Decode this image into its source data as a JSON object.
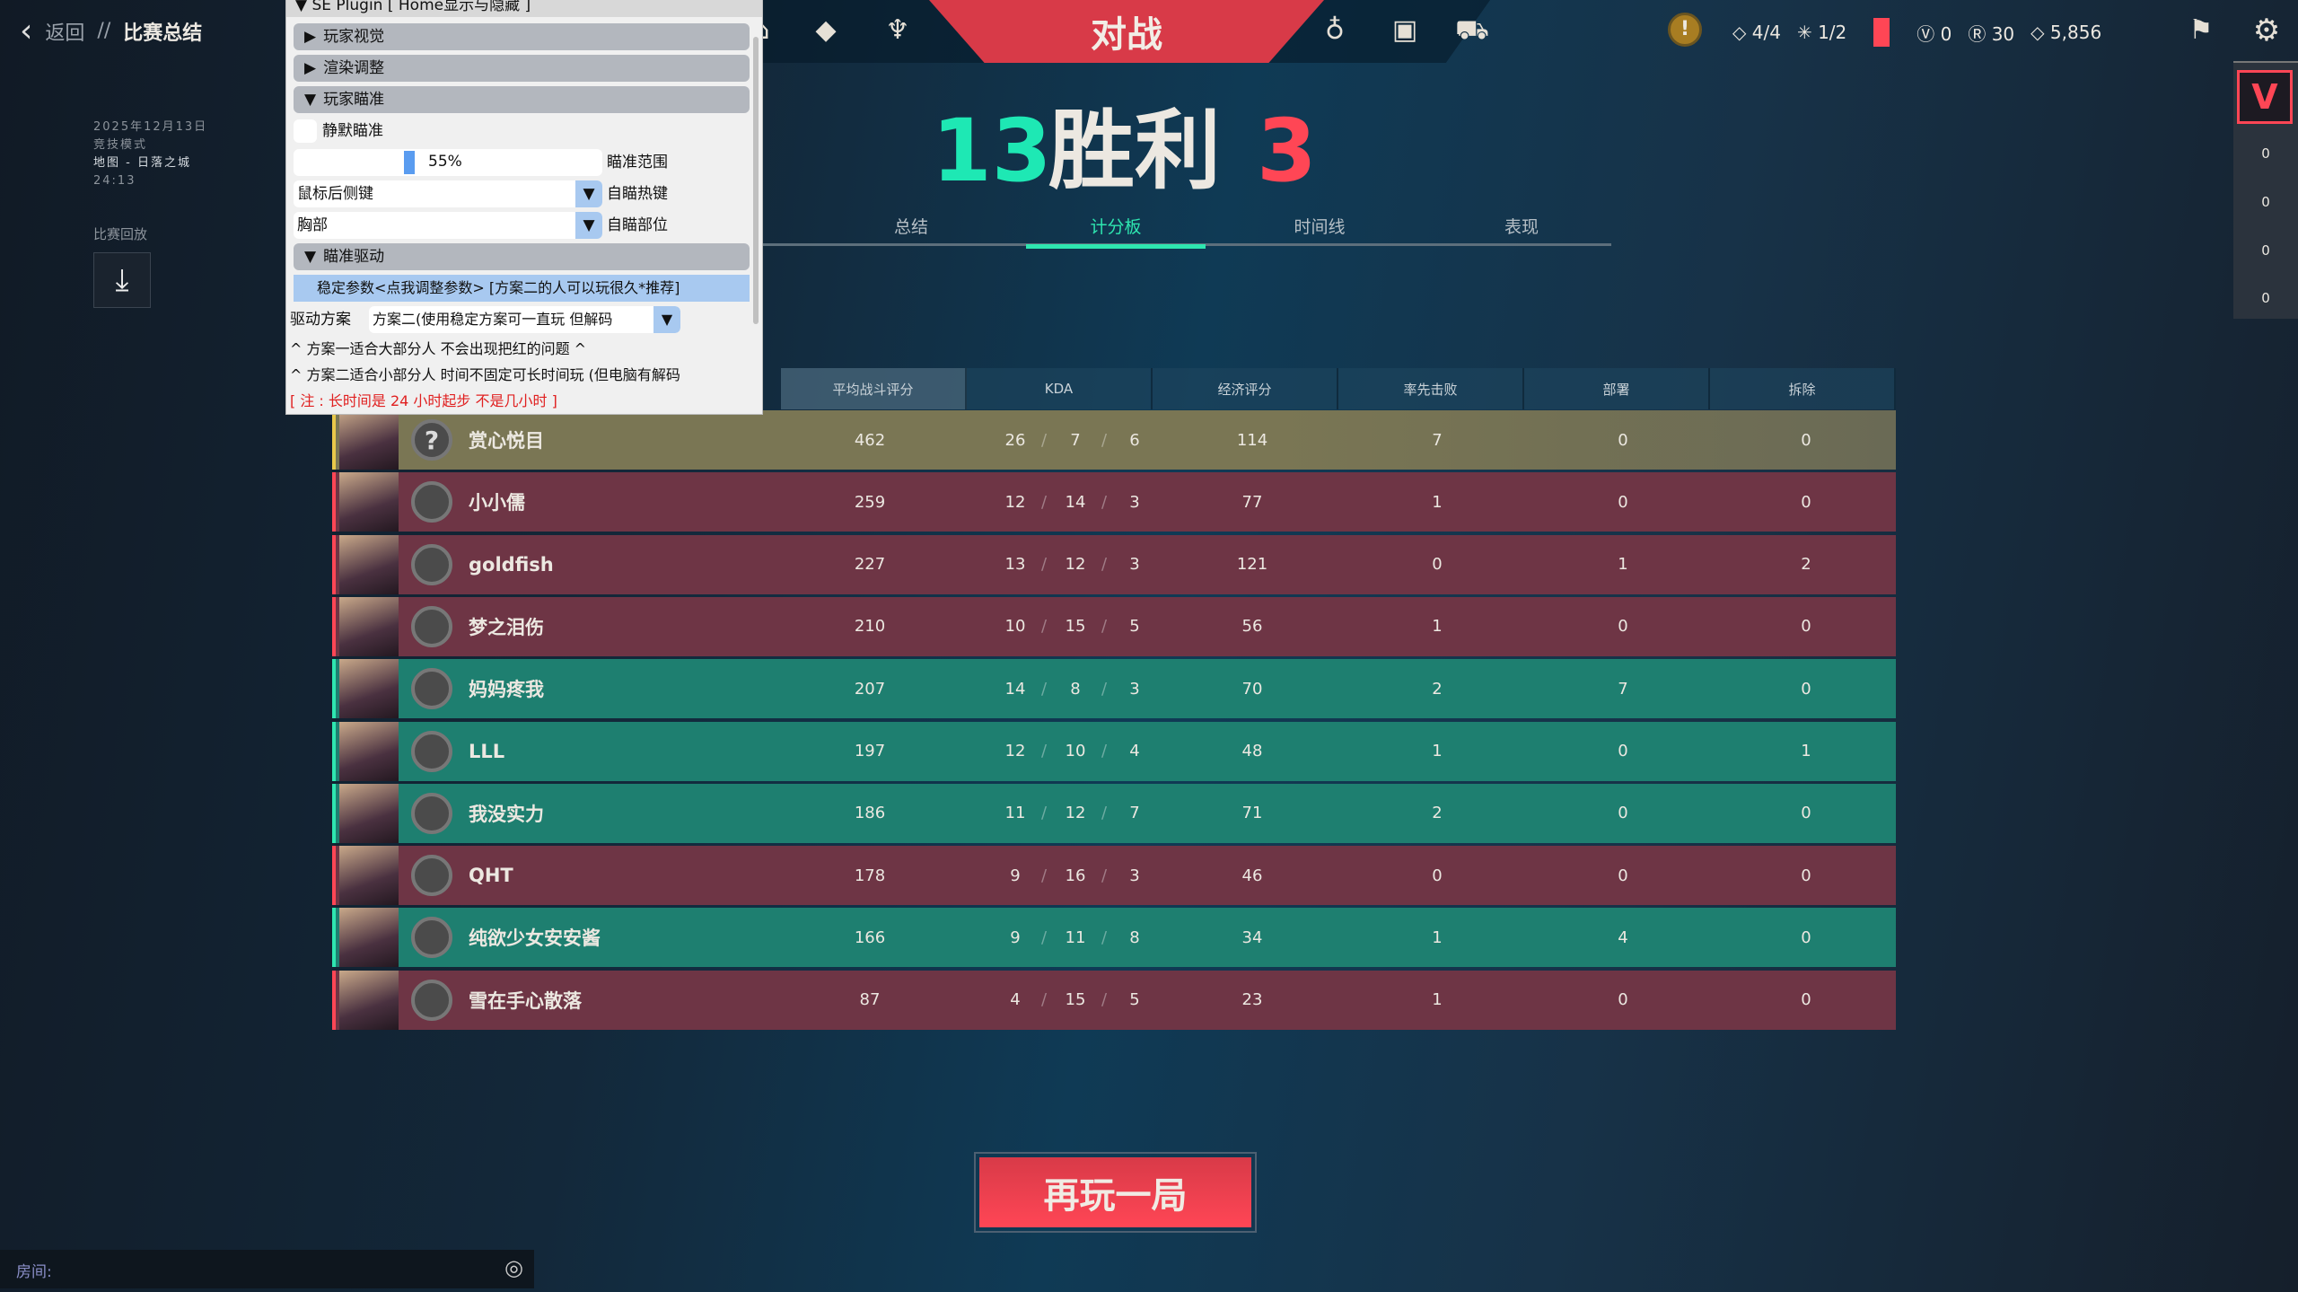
{
  "nav": {
    "back": "返回",
    "sep": "//",
    "title": "比赛总结"
  },
  "match": {
    "date": "2025年12月13日",
    "mode": "竞技模式",
    "map": "地图 - 日落之城",
    "duration": "24:13",
    "replay_label": "比赛回放"
  },
  "topbar": {
    "center_tab": "对战",
    "left_icons": [
      "agents-icon",
      "career-icon",
      "collection-icon"
    ],
    "right_icons": [
      "battlepass-icon",
      "inventory-icon",
      "store-icon"
    ]
  },
  "currency": {
    "alert": "!",
    "a": "4/4",
    "b": "1/2",
    "vp": "0",
    "rp": "30",
    "kp": "5,856"
  },
  "result": {
    "team_score": "13",
    "label": "胜利",
    "enemy_score": "3",
    "colors": {
      "win": "#1ee8b4",
      "loss": "#ff4655"
    }
  },
  "tabs": [
    {
      "label": "总结"
    },
    {
      "label": "计分板",
      "active": true
    },
    {
      "label": "时间线"
    },
    {
      "label": "表现"
    }
  ],
  "table": {
    "headers": [
      "平均战斗评分",
      "KDA",
      "经济评分",
      "率先击败",
      "部署",
      "拆除"
    ],
    "rows": [
      {
        "name": "赏心悦目",
        "team": "self",
        "acs": "462",
        "k": "26",
        "d": "7",
        "a": "6",
        "econ": "114",
        "fb": "7",
        "plant": "0",
        "defuse": "0",
        "rank": "?"
      },
      {
        "name": "小小儒",
        "team": "red",
        "acs": "259",
        "k": "12",
        "d": "14",
        "a": "3",
        "econ": "77",
        "fb": "1",
        "plant": "0",
        "defuse": "0",
        "rank": ""
      },
      {
        "name": "goldfish",
        "team": "red",
        "acs": "227",
        "k": "13",
        "d": "12",
        "a": "3",
        "econ": "121",
        "fb": "0",
        "plant": "1",
        "defuse": "2",
        "rank": ""
      },
      {
        "name": "梦之泪伤",
        "team": "red",
        "acs": "210",
        "k": "10",
        "d": "15",
        "a": "5",
        "econ": "56",
        "fb": "1",
        "plant": "0",
        "defuse": "0",
        "rank": ""
      },
      {
        "name": "妈妈疼我",
        "team": "teal",
        "acs": "207",
        "k": "14",
        "d": "8",
        "a": "3",
        "econ": "70",
        "fb": "2",
        "plant": "7",
        "defuse": "0",
        "rank": ""
      },
      {
        "name": "LLL",
        "team": "teal",
        "acs": "197",
        "k": "12",
        "d": "10",
        "a": "4",
        "econ": "48",
        "fb": "1",
        "plant": "0",
        "defuse": "1",
        "rank": ""
      },
      {
        "name": "我没实力",
        "team": "teal",
        "acs": "186",
        "k": "11",
        "d": "12",
        "a": "7",
        "econ": "71",
        "fb": "2",
        "plant": "0",
        "defuse": "0",
        "rank": ""
      },
      {
        "name": "QHT",
        "team": "red",
        "acs": "178",
        "k": "9",
        "d": "16",
        "a": "3",
        "econ": "46",
        "fb": "0",
        "plant": "0",
        "defuse": "0",
        "rank": ""
      },
      {
        "name": "纯欲少女安安酱",
        "team": "teal",
        "acs": "166",
        "k": "9",
        "d": "11",
        "a": "8",
        "econ": "34",
        "fb": "1",
        "plant": "4",
        "defuse": "0",
        "rank": ""
      },
      {
        "name": "雪在手心散落",
        "team": "red",
        "acs": "87",
        "k": "4",
        "d": "15",
        "a": "5",
        "econ": "23",
        "fb": "1",
        "plant": "0",
        "defuse": "0",
        "rank": ""
      }
    ],
    "colors": {
      "self": "#7a7654",
      "red": "#6e3545",
      "teal": "#1e7f70",
      "self_edge": "#e8c84a",
      "red_edge": "#ff4655",
      "teal_edge": "#2ee6b0"
    }
  },
  "side": {
    "values": [
      "0",
      "0",
      "0",
      "0"
    ]
  },
  "play_again": "再玩一局",
  "room": {
    "label": "房间:"
  },
  "plugin": {
    "title": "SE Plugin [ Home显示与隐藏 ]",
    "sec1": "玩家视觉",
    "sec2": "渲染调整",
    "sec3": "玩家瞄准",
    "silent": "静默瞄准",
    "fov_value": "55%",
    "fov_percent": 55,
    "fov_label": "瞄准范围",
    "hotkey": "鼠标后侧键",
    "hotkey_label": "自瞄热键",
    "bone": "胸部",
    "bone_label": "自瞄部位",
    "sec4": "瞄准驱动",
    "stable_btn": "稳定参数<点我调整参数> [方案二的人可以玩很久*推荐]",
    "driver_label": "驱动方案",
    "driver_value": "方案二(使用稳定方案可一直玩 但解码",
    "note1": "^ 方案一适合大部分人 不会出现把红的问题 ^",
    "note2": "^ 方案二适合小部分人 时间不固定可长时间玩 (但电脑有解码",
    "note3": "[ 注 : 长时间是 24 小时起步 不是几小时 ]"
  }
}
